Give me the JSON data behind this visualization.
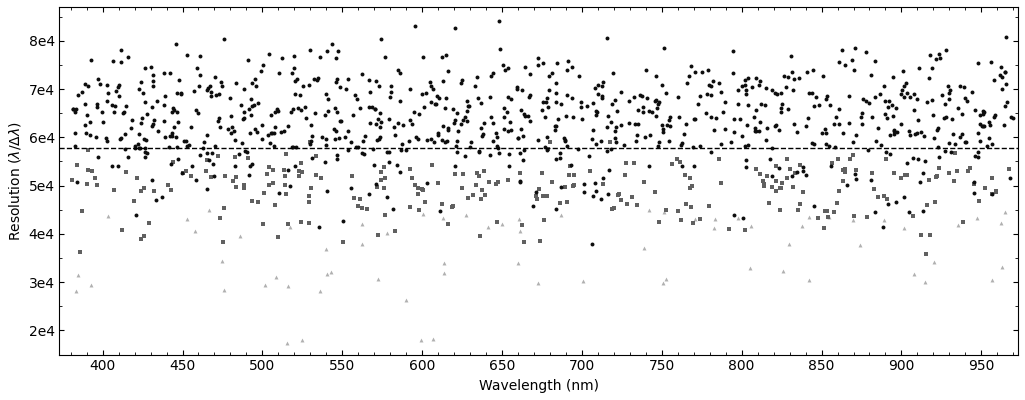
{
  "xlabel": "Wavelength (nm)",
  "ylabel": "Resolution ($\\lambda/\\Delta\\lambda$)",
  "xlim": [
    373,
    973
  ],
  "ylim": [
    15000,
    87000
  ],
  "yticks": [
    20000,
    30000,
    40000,
    50000,
    60000,
    70000,
    80000
  ],
  "ytick_labels": [
    "2e4",
    "3e4",
    "4e4",
    "5e4",
    "6e4",
    "7e4",
    "8e4"
  ],
  "xticks": [
    400,
    450,
    500,
    550,
    600,
    650,
    700,
    750,
    800,
    850,
    900,
    950
  ],
  "hline_y": 57800,
  "circle_color": "#0d0d0d",
  "square_color": "#606060",
  "triangle_color": "#b0b0b0",
  "marker_size": 8,
  "seed": 7
}
